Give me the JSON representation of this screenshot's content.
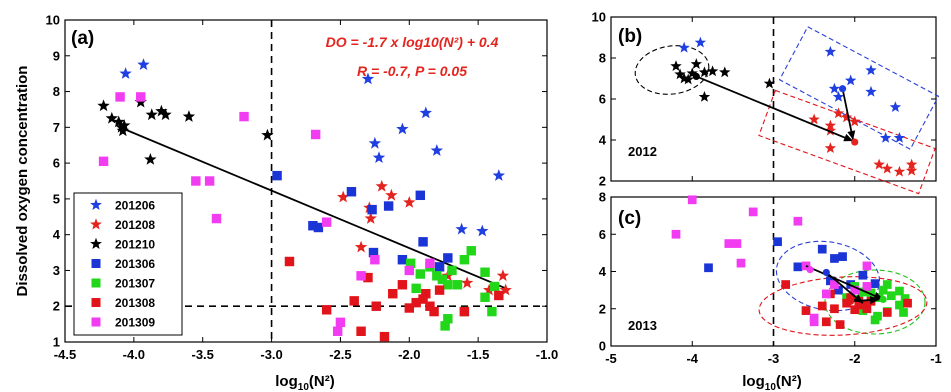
{
  "colors": {
    "201206": "#1f3fe0",
    "201208": "#e4251f",
    "201210": "#000000",
    "201306": "#1a34d6",
    "201307": "#22d61a",
    "201308": "#e0141a",
    "201309": "#f23cf2",
    "annotation": "#e4251f",
    "blue_ellipse": "#2a3fd8",
    "green_ellipse": "#22c21a",
    "red_ellipse": "#e0141a"
  },
  "markers": {
    "201206": "star",
    "201208": "star",
    "201210": "star",
    "201306": "square",
    "201307": "square",
    "201308": "square",
    "201309": "square"
  },
  "chart_data": [
    {
      "id": "a",
      "panel_label": "(a)",
      "type": "scatter",
      "xlabel_main": "log",
      "xlabel_sub": "10",
      "xlabel_end": "(N²)",
      "ylabel": "Dissolved oxygen concentration",
      "xlim": [
        -4.5,
        -1.0
      ],
      "ylim": [
        1,
        10
      ],
      "xticks": [
        "-4.5",
        "-4.0",
        "-3.5",
        "-3.0",
        "-2.5",
        "-2.0",
        "-1.5",
        "-1.0"
      ],
      "xtick_values": [
        -4.5,
        -4.0,
        -3.5,
        -3.0,
        -2.5,
        -2.0,
        -1.5,
        -1.0
      ],
      "yticks": [
        "1",
        "2",
        "3",
        "4",
        "5",
        "6",
        "7",
        "8",
        "9",
        "10"
      ],
      "ytick_values": [
        1,
        2,
        3,
        4,
        5,
        6,
        7,
        8,
        9,
        10
      ],
      "vline_x": -3.0,
      "hline_y": 2.0,
      "fit_line": [
        [
          -4.1,
          7.0
        ],
        [
          -1.3,
          2.5
        ]
      ],
      "annotation_line1": "DO = -1.7 x log10(N²) + 0.4",
      "annotation_line2": "R = -0.7, P = 0.05",
      "legend_position": "bottom-left",
      "series": [
        {
          "name": "201206",
          "points": [
            [
              -4.06,
              8.5
            ],
            [
              -3.93,
              8.75
            ],
            [
              -2.3,
              8.35
            ],
            [
              -2.25,
              6.55
            ],
            [
              -2.22,
              6.15
            ],
            [
              -2.05,
              6.95
            ],
            [
              -1.88,
              7.4
            ],
            [
              -1.8,
              6.35
            ],
            [
              -1.62,
              4.15
            ],
            [
              -1.47,
              4.1
            ],
            [
              -1.35,
              5.65
            ]
          ]
        },
        {
          "name": "201208",
          "points": [
            [
              -2.48,
              5.05
            ],
            [
              -2.29,
              4.75
            ],
            [
              -2.28,
              4.45
            ],
            [
              -2.2,
              5.35
            ],
            [
              -2.13,
              5.1
            ],
            [
              -2.0,
              4.9
            ],
            [
              -2.35,
              3.65
            ],
            [
              -1.72,
              2.85
            ],
            [
              -1.58,
              2.65
            ],
            [
              -1.42,
              2.45
            ],
            [
              -1.32,
              2.85
            ],
            [
              -1.3,
              2.45
            ]
          ]
        },
        {
          "name": "201210",
          "points": [
            [
              -4.22,
              7.6
            ],
            [
              -4.16,
              7.25
            ],
            [
              -4.11,
              7.15
            ],
            [
              -4.09,
              7.0
            ],
            [
              -4.07,
              7.05
            ],
            [
              -4.08,
              6.9
            ],
            [
              -3.95,
              7.7
            ],
            [
              -3.87,
              7.35
            ],
            [
              -3.8,
              7.45
            ],
            [
              -3.77,
              7.35
            ],
            [
              -3.88,
              6.1
            ],
            [
              -3.6,
              7.3
            ],
            [
              -3.03,
              6.78
            ]
          ]
        },
        {
          "name": "201306",
          "points": [
            [
              -2.96,
              5.65
            ],
            [
              -2.7,
              4.25
            ],
            [
              -2.66,
              4.2
            ],
            [
              -2.42,
              5.2
            ],
            [
              -2.27,
              4.7
            ],
            [
              -2.15,
              4.8
            ],
            [
              -1.92,
              5.1
            ],
            [
              -1.9,
              3.8
            ],
            [
              -2.26,
              3.5
            ],
            [
              -1.72,
              3.35
            ],
            [
              -1.78,
              3.1
            ],
            [
              -2.05,
              3.3
            ]
          ]
        },
        {
          "name": "201307",
          "points": [
            [
              -1.99,
              3.2
            ],
            [
              -1.92,
              2.9
            ],
            [
              -1.85,
              3.1
            ],
            [
              -1.8,
              2.85
            ],
            [
              -1.76,
              2.75
            ],
            [
              -1.72,
              2.6
            ],
            [
              -1.69,
              3.0
            ],
            [
              -1.65,
              2.6
            ],
            [
              -1.6,
              3.3
            ],
            [
              -1.55,
              3.55
            ],
            [
              -1.45,
              2.95
            ],
            [
              -1.38,
              2.55
            ],
            [
              -1.45,
              2.25
            ],
            [
              -1.4,
              1.85
            ],
            [
              -1.6,
              1.85
            ],
            [
              -1.72,
              1.65
            ],
            [
              -1.74,
              1.45
            ],
            [
              -1.95,
              2.5
            ]
          ]
        },
        {
          "name": "201308",
          "points": [
            [
              -2.87,
              3.25
            ],
            [
              -2.6,
              1.9
            ],
            [
              -2.4,
              2.15
            ],
            [
              -2.35,
              1.3
            ],
            [
              -2.18,
              1.15
            ],
            [
              -2.24,
              2.0
            ],
            [
              -2.12,
              2.35
            ],
            [
              -2.05,
              2.6
            ],
            [
              -2.0,
              1.95
            ],
            [
              -1.95,
              2.1
            ],
            [
              -1.88,
              2.35
            ],
            [
              -1.85,
              2.0
            ],
            [
              -1.82,
              1.85
            ],
            [
              -1.9,
              2.2
            ],
            [
              -1.78,
              2.45
            ],
            [
              -1.6,
              1.85
            ],
            [
              -2.3,
              2.8
            ],
            [
              -1.35,
              2.3
            ]
          ]
        },
        {
          "name": "201309",
          "points": [
            [
              -4.1,
              7.85
            ],
            [
              -3.95,
              7.85
            ],
            [
              -4.22,
              6.05
            ],
            [
              -3.55,
              5.5
            ],
            [
              -3.45,
              5.5
            ],
            [
              -3.4,
              4.45
            ],
            [
              -3.2,
              7.3
            ],
            [
              -2.68,
              6.8
            ],
            [
              -2.6,
              4.35
            ],
            [
              -2.35,
              2.85
            ],
            [
              -2.25,
              3.3
            ],
            [
              -2.5,
              1.55
            ],
            [
              -2.52,
              1.3
            ],
            [
              -1.85,
              3.2
            ],
            [
              -2.0,
              3.0
            ]
          ]
        }
      ]
    },
    {
      "id": "b",
      "panel_label": "(b)",
      "year_label": "2012",
      "type": "scatter",
      "xlim": [
        -5,
        -1
      ],
      "ylim": [
        2,
        10
      ],
      "yticks": [
        "2",
        "4",
        "6",
        "8",
        "10"
      ],
      "ytick_values": [
        2,
        4,
        6,
        8,
        10
      ],
      "vline_x": -3.0,
      "series": [
        {
          "name": "201206",
          "points": [
            [
              -4.1,
              8.5
            ],
            [
              -3.9,
              8.75
            ],
            [
              -2.3,
              8.3
            ],
            [
              -1.8,
              7.4
            ],
            [
              -2.05,
              6.9
            ],
            [
              -2.2,
              6.1
            ],
            [
              -1.8,
              6.35
            ],
            [
              -1.5,
              5.6
            ],
            [
              -1.62,
              4.1
            ],
            [
              -1.45,
              4.1
            ],
            [
              -2.25,
              6.5
            ]
          ]
        },
        {
          "name": "201208",
          "points": [
            [
              -2.5,
              5.0
            ],
            [
              -2.3,
              4.7
            ],
            [
              -2.3,
              4.45
            ],
            [
              -2.2,
              5.3
            ],
            [
              -2.1,
              5.1
            ],
            [
              -2.3,
              3.6
            ],
            [
              -1.7,
              2.8
            ],
            [
              -1.6,
              2.6
            ],
            [
              -1.3,
              2.8
            ],
            [
              -1.3,
              2.5
            ],
            [
              -2.0,
              4.9
            ],
            [
              -1.45,
              2.45
            ]
          ]
        },
        {
          "name": "201210",
          "points": [
            [
              -4.2,
              7.6
            ],
            [
              -4.15,
              7.2
            ],
            [
              -4.1,
              7.0
            ],
            [
              -4.05,
              6.95
            ],
            [
              -3.95,
              7.7
            ],
            [
              -3.85,
              7.3
            ],
            [
              -3.75,
              7.35
            ],
            [
              -3.6,
              7.3
            ],
            [
              -3.85,
              6.1
            ],
            [
              -3.05,
              6.75
            ],
            [
              -4.0,
              7.25
            ]
          ]
        }
      ],
      "centroids": [
        {
          "name": "201206",
          "x": -2.15,
          "y": 6.5
        },
        {
          "name": "201208",
          "x": -2.0,
          "y": 3.9
        },
        {
          "name": "201210",
          "x": -3.95,
          "y": 7.1
        }
      ],
      "arrows": [
        {
          "from": [
            -3.95,
            7.1
          ],
          "to": [
            -2.02,
            3.95
          ]
        },
        {
          "from": [
            -2.15,
            6.5
          ],
          "to": [
            -2.02,
            4.0
          ]
        }
      ]
    },
    {
      "id": "c",
      "panel_label": "(c)",
      "year_label": "2013",
      "type": "scatter",
      "xlabel_main": "log",
      "xlabel_sub": "10",
      "xlabel_end": "(N²)",
      "xlim": [
        -5,
        -1
      ],
      "ylim": [
        0,
        8
      ],
      "xticks": [
        "-5",
        "-4",
        "-3",
        "-2",
        "-1"
      ],
      "xtick_values": [
        -5,
        -4,
        -3,
        -2,
        -1
      ],
      "yticks": [
        "0",
        "2",
        "4",
        "6",
        "8"
      ],
      "ytick_values": [
        0,
        2,
        4,
        6,
        8
      ],
      "vline_x": -3.0,
      "series": [
        {
          "name": "201306",
          "points": [
            [
              -3.8,
              4.2
            ],
            [
              -2.95,
              5.6
            ],
            [
              -2.7,
              4.25
            ],
            [
              -2.4,
              5.2
            ],
            [
              -2.25,
              4.7
            ],
            [
              -2.15,
              4.8
            ],
            [
              -1.9,
              3.8
            ],
            [
              -2.3,
              3.5
            ],
            [
              -2.05,
              3.3
            ],
            [
              -1.75,
              3.35
            ],
            [
              -2.2,
              3.0
            ]
          ]
        },
        {
          "name": "201307",
          "points": [
            [
              -2.0,
              3.2
            ],
            [
              -1.9,
              2.9
            ],
            [
              -1.85,
              3.1
            ],
            [
              -1.8,
              2.85
            ],
            [
              -1.7,
              2.6
            ],
            [
              -1.65,
              3.0
            ],
            [
              -1.6,
              3.3
            ],
            [
              -1.55,
              2.7
            ],
            [
              -1.45,
              2.95
            ],
            [
              -1.38,
              2.55
            ],
            [
              -1.45,
              2.2
            ],
            [
              -1.4,
              1.8
            ],
            [
              -1.6,
              1.85
            ],
            [
              -1.72,
              1.6
            ],
            [
              -1.75,
              1.4
            ],
            [
              -1.95,
              2.5
            ],
            [
              -1.9,
              1.9
            ],
            [
              -2.1,
              2.6
            ]
          ]
        },
        {
          "name": "201308",
          "points": [
            [
              -2.85,
              3.3
            ],
            [
              -2.6,
              1.9
            ],
            [
              -2.4,
              2.15
            ],
            [
              -2.35,
              1.3
            ],
            [
              -2.18,
              1.15
            ],
            [
              -2.25,
              2.0
            ],
            [
              -2.1,
              2.3
            ],
            [
              -2.05,
              2.6
            ],
            [
              -2.0,
              1.95
            ],
            [
              -1.9,
              2.2
            ],
            [
              -1.85,
              2.0
            ],
            [
              -1.8,
              2.4
            ],
            [
              -1.6,
              1.8
            ],
            [
              -1.35,
              2.3
            ],
            [
              -2.3,
              2.8
            ],
            [
              -1.95,
              2.4
            ]
          ]
        },
        {
          "name": "201309",
          "points": [
            [
              -4.2,
              6.0
            ],
            [
              -4.0,
              7.85
            ],
            [
              -3.55,
              5.5
            ],
            [
              -3.45,
              5.5
            ],
            [
              -3.4,
              4.45
            ],
            [
              -3.25,
              7.2
            ],
            [
              -2.7,
              6.7
            ],
            [
              -2.6,
              4.3
            ],
            [
              -2.35,
              2.8
            ],
            [
              -2.25,
              3.3
            ],
            [
              -2.5,
              1.5
            ],
            [
              -2.5,
              1.3
            ],
            [
              -1.85,
              3.2
            ],
            [
              -2.0,
              3.0
            ],
            [
              -1.85,
              4.3
            ]
          ]
        }
      ],
      "centroids": [
        {
          "name": "201306",
          "x": -2.35,
          "y": 3.95
        },
        {
          "name": "201307",
          "x": -1.65,
          "y": 2.5
        },
        {
          "name": "201308",
          "x": -2.05,
          "y": 2.4
        },
        {
          "name": "201309",
          "x": -2.55,
          "y": 4.1
        }
      ],
      "arrows": [
        {
          "from": [
            -2.6,
            4.3
          ],
          "to": [
            -1.65,
            2.5
          ]
        },
        {
          "from": [
            -2.35,
            3.95
          ],
          "to": [
            -1.9,
            2.3
          ]
        },
        {
          "from": [
            -2.05,
            2.4
          ],
          "to": [
            -1.7,
            2.5
          ]
        }
      ]
    }
  ]
}
